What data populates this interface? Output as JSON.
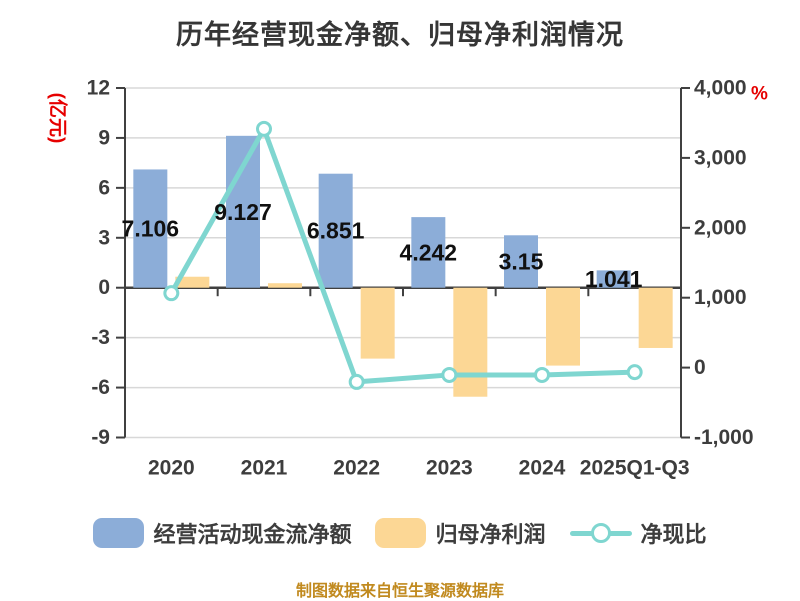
{
  "title": "历年经营现金净额、归母净利润情况",
  "footer": "制图数据来自恒生聚源数据库",
  "colors": {
    "cash_bar": "#8cadd8",
    "profit_bar": "#fcd795",
    "ratio_line": "#7fd6d0",
    "marker_fill": "#ffffff",
    "axis": "#404040",
    "grid": "#d8d8d8",
    "tick_text": "#3d3d3d",
    "value_text": "#101010",
    "unit_text": "#e60000",
    "footer_text": "#c18a1f"
  },
  "left_axis": {
    "unit": "(亿元)",
    "ticks": [
      "12",
      "9",
      "6",
      "3",
      "0",
      "-3",
      "-6",
      "-9"
    ],
    "values": [
      12,
      9,
      6,
      3,
      0,
      -3,
      -6,
      -9
    ]
  },
  "right_axis": {
    "unit": "%",
    "ticks": [
      "4,000",
      "3,000",
      "2,000",
      "1,000",
      "0",
      "-1,000"
    ],
    "values": [
      4000,
      3000,
      2000,
      1000,
      0,
      -1000
    ]
  },
  "legend": {
    "items": [
      {
        "label": "经营活动现金流净额",
        "marker": "bar",
        "color": "#8cadd8"
      },
      {
        "label": "归母净利润",
        "marker": "bar",
        "color": "#fcd795"
      },
      {
        "label": "净现比",
        "marker": "line",
        "color": "#7fd6d0"
      }
    ]
  },
  "chart_data": {
    "type": "bar+line",
    "title": "历年经营现金净额、归母净利润情况",
    "categories": [
      "2020",
      "2021",
      "2022",
      "2023",
      "2024",
      "2025Q1-Q3"
    ],
    "series": [
      {
        "name": "经营活动现金流净额",
        "type": "bar",
        "axis": "left",
        "unit": "亿元",
        "values": [
          7.106,
          9.127,
          6.851,
          4.242,
          3.15,
          1.041
        ],
        "labels": [
          "7.106",
          "9.127",
          "6.851",
          "4.242",
          "3.15",
          "1.041"
        ]
      },
      {
        "name": "归母净利润",
        "type": "bar",
        "axis": "left",
        "unit": "亿元",
        "values": [
          0.66,
          0.27,
          -4.26,
          -6.55,
          -4.68,
          -3.62
        ]
      },
      {
        "name": "净现比",
        "type": "line",
        "axis": "right",
        "unit": "%",
        "values": [
          1065,
          3415,
          -205,
          -105,
          -105,
          -65
        ]
      }
    ],
    "left_ylim": [
      -9,
      12
    ],
    "right_ylim": [
      -1000,
      4000
    ],
    "grid": true,
    "legend_position": "bottom"
  }
}
